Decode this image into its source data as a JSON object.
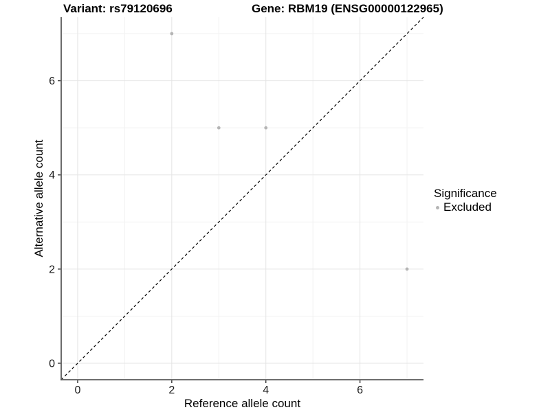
{
  "chart_data": {
    "type": "scatter",
    "title": "Variant: rs79120696    Gene: RBM19 (ENSG00000122965)",
    "title_parts": [
      "Variant: rs79120696",
      "Gene: RBM19 (ENSG00000122965)"
    ],
    "xlabel": "Reference allele count",
    "ylabel": "Alternative allele count",
    "xlim": [
      -0.35,
      7.35
    ],
    "ylim": [
      -0.35,
      7.35
    ],
    "x_major_ticks": [
      0,
      2,
      4,
      6
    ],
    "y_major_ticks": [
      0,
      2,
      4,
      6
    ],
    "grid": {
      "major": [
        0,
        2,
        4,
        6
      ],
      "minor": [
        1,
        3,
        5,
        7
      ]
    },
    "series": [
      {
        "name": "Excluded",
        "color": "#b5b5b5",
        "points": [
          {
            "x": 2,
            "y": 7
          },
          {
            "x": 3,
            "y": 5
          },
          {
            "x": 4,
            "y": 5
          },
          {
            "x": 7,
            "y": 2
          }
        ]
      }
    ],
    "reference_line": {
      "type": "identity",
      "style": "dashed",
      "color": "#000000"
    },
    "legend": {
      "position": "right",
      "title": "Significance",
      "items": [
        {
          "label": "Excluded",
          "color": "#b5b5b5"
        }
      ]
    },
    "colors": {
      "background": "#ffffff",
      "grid_major": "#e4e4e4",
      "grid_minor": "#f2f2f2",
      "axis_line": "#5a5a5a",
      "tick_mark": "#333333",
      "tick_label": "#1a1a1a",
      "point": "#b5b5b5"
    }
  }
}
